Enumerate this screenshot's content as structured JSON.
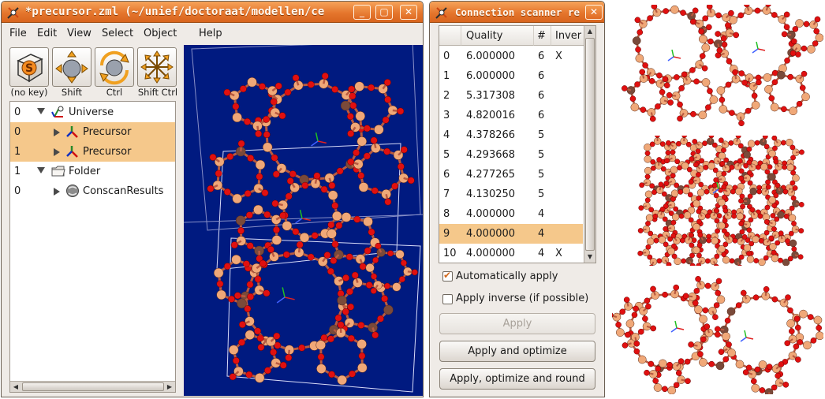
{
  "main_window": {
    "title": "*precursor.zml (~/unief/doctoraat/modellen/ce",
    "controls": {
      "minimize": "_",
      "maximize": "▢",
      "close": "✕"
    },
    "menu": [
      "File",
      "Edit",
      "View",
      "Select",
      "Object",
      "Help"
    ],
    "toolbar": [
      {
        "label": "(no key)",
        "icon": "select-box-icon"
      },
      {
        "label": "Shift",
        "icon": "translate-arrows-icon"
      },
      {
        "label": "Ctrl",
        "icon": "rotate-icon"
      },
      {
        "label": "Shift Ctrl",
        "icon": "scale-icon"
      }
    ],
    "tree": [
      {
        "index": "0",
        "label": "Universe",
        "level": 0,
        "expanded": true,
        "icon": "universe-axes-icon",
        "selected": false
      },
      {
        "index": "0",
        "label": "Precursor",
        "level": 1,
        "expanded": false,
        "icon": "frame-axes-icon",
        "selected": true
      },
      {
        "index": "1",
        "label": "Precursor",
        "level": 1,
        "expanded": false,
        "icon": "frame-axes-icon",
        "selected": true
      },
      {
        "index": "1",
        "label": "Folder",
        "level": 0,
        "expanded": true,
        "icon": "folder-icon",
        "selected": false
      },
      {
        "index": "0",
        "label": "ConscanResults",
        "level": 1,
        "expanded": false,
        "icon": "results-sphere-icon",
        "selected": false
      }
    ]
  },
  "scanner_window": {
    "title": "Connection scanner re",
    "controls": {
      "close": "✕"
    },
    "columns": [
      "",
      "Quality",
      "#",
      "Inver"
    ],
    "rows": [
      {
        "id": "0",
        "quality": "6.000000",
        "count": "6",
        "inverse": "X",
        "selected": false
      },
      {
        "id": "1",
        "quality": "6.000000",
        "count": "6",
        "inverse": "",
        "selected": false
      },
      {
        "id": "2",
        "quality": "5.317308",
        "count": "6",
        "inverse": "",
        "selected": false
      },
      {
        "id": "3",
        "quality": "4.820016",
        "count": "6",
        "inverse": "",
        "selected": false
      },
      {
        "id": "4",
        "quality": "4.378266",
        "count": "5",
        "inverse": "",
        "selected": false
      },
      {
        "id": "5",
        "quality": "4.293668",
        "count": "5",
        "inverse": "",
        "selected": false
      },
      {
        "id": "6",
        "quality": "4.277265",
        "count": "5",
        "inverse": "",
        "selected": false
      },
      {
        "id": "7",
        "quality": "4.130250",
        "count": "5",
        "inverse": "",
        "selected": false
      },
      {
        "id": "8",
        "quality": "4.000000",
        "count": "4",
        "inverse": "",
        "selected": false
      },
      {
        "id": "9",
        "quality": "4.000000",
        "count": "4",
        "inverse": "",
        "selected": true
      },
      {
        "id": "10",
        "quality": "4.000000",
        "count": "4",
        "inverse": "X",
        "selected": false
      }
    ],
    "auto_apply": {
      "label": "Automatically apply",
      "checked": true
    },
    "apply_inverse": {
      "label": "Apply inverse (if possible)",
      "checked": false
    },
    "buttons": {
      "apply": "Apply",
      "apply_optimize": "Apply and optimize",
      "apply_optimize_round": "Apply, optimize and round"
    }
  },
  "colors": {
    "oxygen": "#e01010",
    "silicon": "#f0a878",
    "aluminium": "#7a4a3a",
    "viewport_bg": "#001a80",
    "selection": "#f5c88b",
    "titlebar": "#e5762d"
  }
}
